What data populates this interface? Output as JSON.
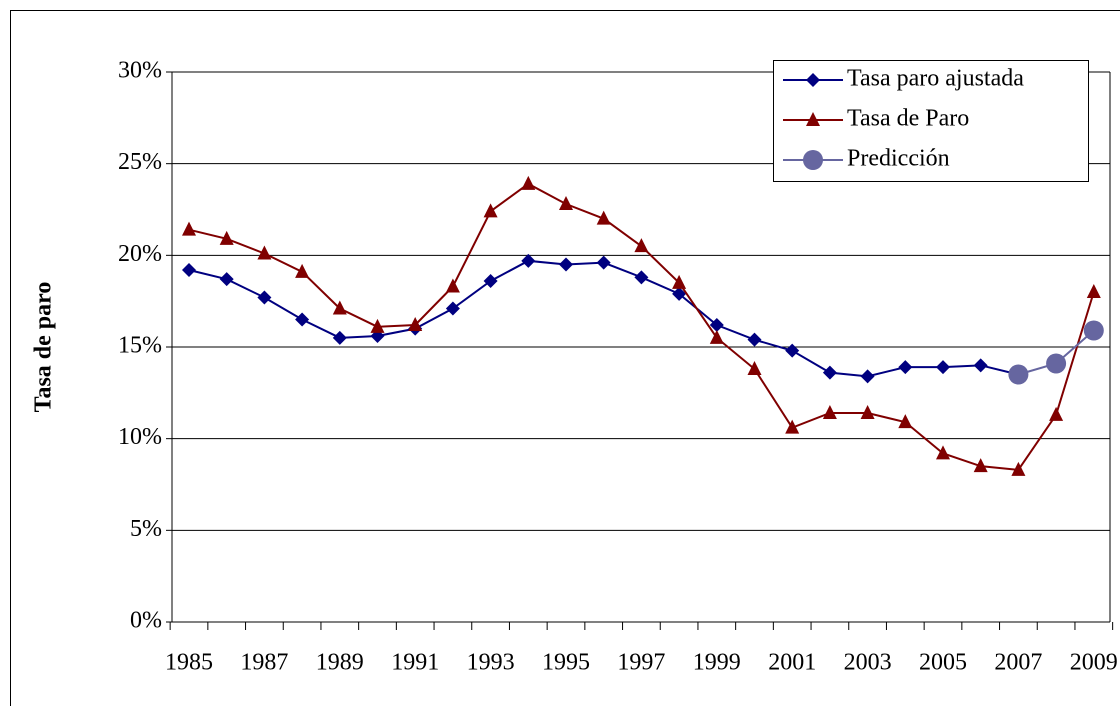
{
  "chart_data": {
    "type": "line",
    "y_label": "Tasa de paro",
    "categories": [
      "1985",
      null,
      "1987",
      null,
      "1989",
      null,
      "1991",
      null,
      "1993",
      null,
      "1995",
      null,
      "1997",
      null,
      "1999",
      null,
      "2001",
      null,
      "2003",
      null,
      "2005",
      null,
      "2007",
      null,
      "2009"
    ],
    "series": [
      {
        "name": "Tasa paro ajustada",
        "color": "#000080",
        "marker": "diamond",
        "values": [
          19.2,
          18.7,
          17.7,
          16.5,
          15.5,
          15.6,
          16.0,
          17.1,
          18.6,
          19.7,
          19.5,
          19.6,
          18.8,
          17.9,
          16.2,
          15.4,
          14.8,
          13.6,
          13.4,
          13.9,
          13.9,
          14.0,
          13.5,
          null,
          null
        ]
      },
      {
        "name": "Tasa de Paro",
        "color": "#800000",
        "marker": "triangle",
        "values": [
          21.4,
          20.9,
          20.1,
          19.1,
          17.1,
          16.1,
          16.2,
          18.3,
          22.4,
          23.9,
          22.8,
          22.0,
          20.5,
          18.5,
          15.5,
          13.8,
          10.6,
          11.4,
          11.4,
          10.9,
          9.2,
          8.5,
          8.3,
          11.3,
          18.0
        ]
      },
      {
        "name": "Predicción",
        "color": "#6666a0",
        "marker": "circle",
        "values": [
          null,
          null,
          null,
          null,
          null,
          null,
          null,
          null,
          null,
          null,
          null,
          null,
          null,
          null,
          null,
          null,
          null,
          null,
          null,
          null,
          null,
          null,
          13.5,
          14.1,
          15.9
        ]
      }
    ],
    "ylim": [
      0,
      30
    ],
    "yticks": [
      {
        "value": 0,
        "label": "0%"
      },
      {
        "value": 5,
        "label": "5%"
      },
      {
        "value": 10,
        "label": "10%"
      },
      {
        "value": 15,
        "label": "15%"
      },
      {
        "value": 20,
        "label": "20%"
      },
      {
        "value": 25,
        "label": "25%"
      },
      {
        "value": 30,
        "label": "30%"
      }
    ],
    "grid": true,
    "legend": "top-right"
  }
}
